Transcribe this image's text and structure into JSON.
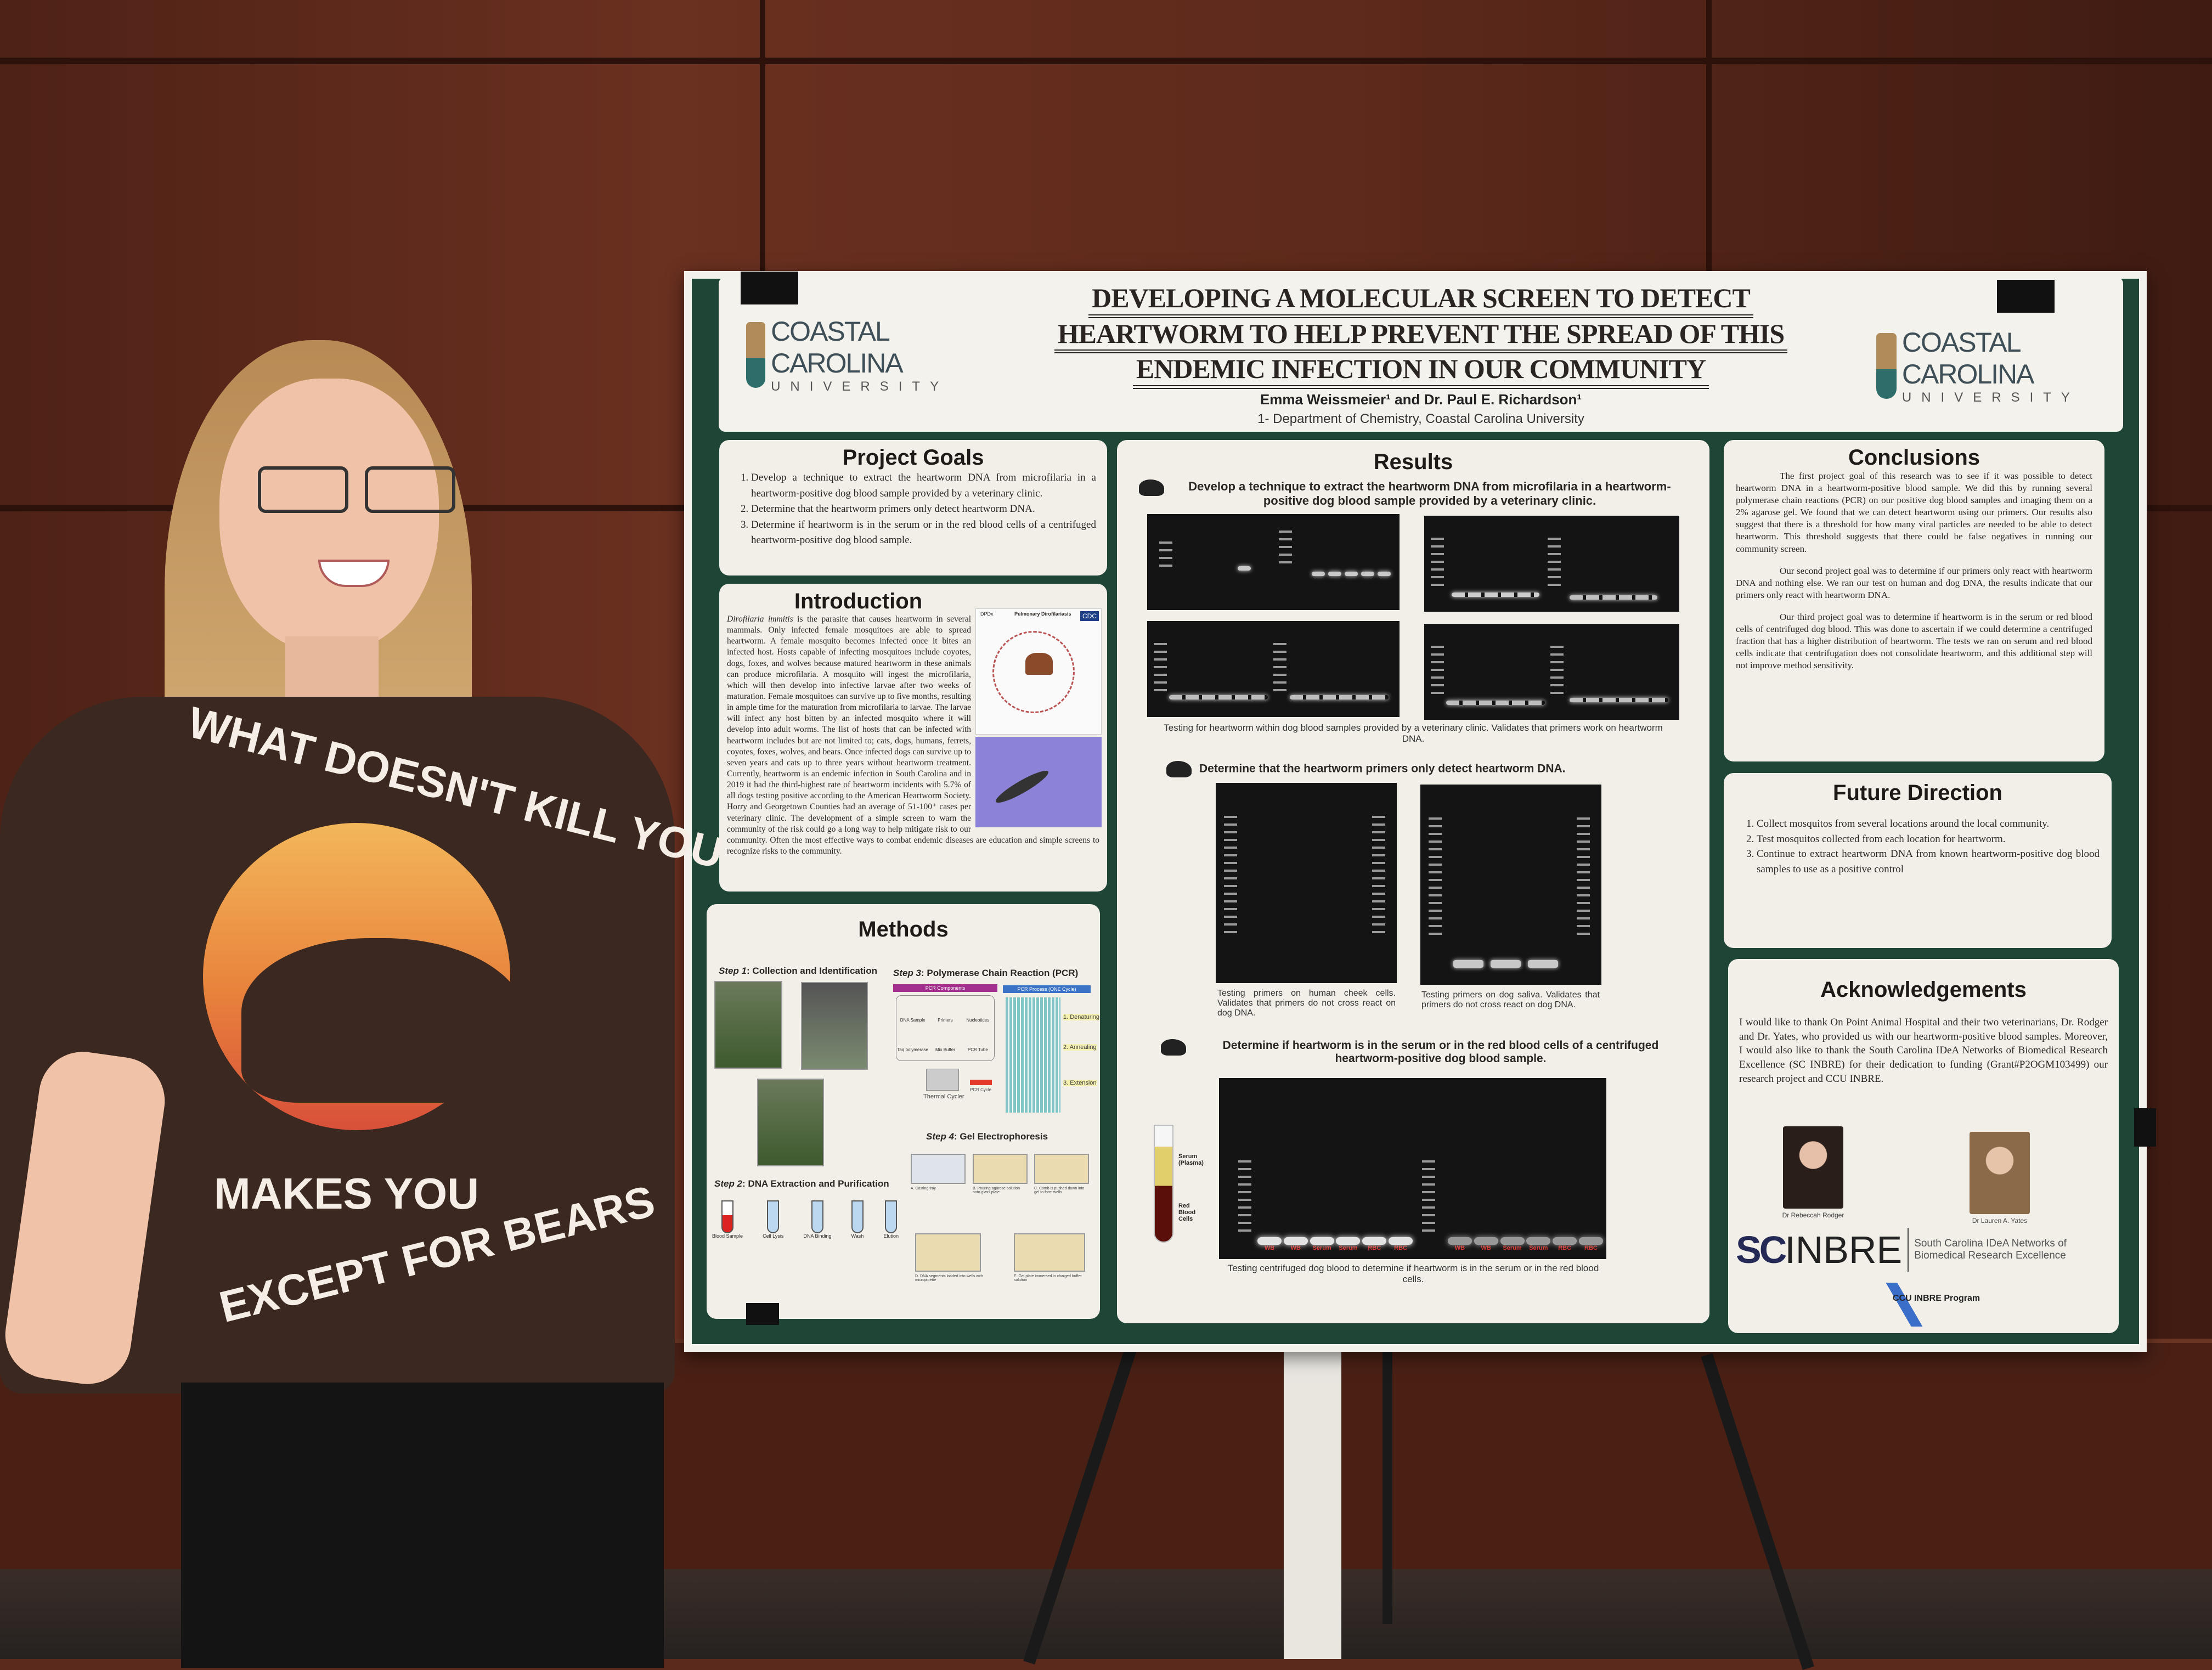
{
  "poster": {
    "title_lines": [
      "DEVELOPING A MOLECULAR SCREEN TO DETECT",
      "HEARTWORM TO HELP PREVENT THE SPREAD OF THIS",
      "ENDEMIC INFECTION IN OUR COMMUNITY"
    ],
    "authors": "Emma Weissmeier¹ and Dr. Paul E. Richardson¹",
    "affiliation": "1- Department of Chemistry, Coastal Carolina University",
    "logo": {
      "name": "COASTAL CAROLINA",
      "sub": "UNIVERSITY"
    },
    "accent_color": "#1f4536",
    "project_goals": {
      "heading": "Project Goals",
      "items": [
        "Develop a technique to extract the heartworm DNA from microfilaria in a heartworm-positive dog blood sample provided by a veterinary clinic.",
        "Determine that the heartworm primers only detect heartworm DNA.",
        "Determine if heartworm is in the serum or in the red blood cells of a centrifuged heartworm-positive dog blood sample."
      ]
    },
    "introduction": {
      "heading": "Introduction",
      "species": "Dirofilaria immitis",
      "text": " is the parasite that causes heartworm in several mammals. Only infected female mosquitoes are able to spread heartworm. A female mosquito becomes infected once it bites an infected host. Hosts capable of infecting mosquitoes include coyotes, dogs, foxes, and wolves because matured heartworm in these animals can produce microfilaria. A mosquito will ingest the microfilaria, which will then develop into infective larvae after two weeks of maturation. Female mosquitoes can survive up to five months, resulting in ample time for the maturation from microfilaria to larvae. The larvae will infect any host bitten by an infected mosquito where it will develop into adult worms. The list of hosts that can be infected with heartworm includes but are not limited to; cats, dogs, humans, ferrets, coyotes, foxes, wolves, and bears. Once infected dogs can survive up to seven years and cats up to three years without heartworm treatment. Currently, heartworm is an endemic infection in South Carolina and in 2019 it had the third-highest rate of heartworm incidents with 5.7% of all dogs testing positive according to the American Heartworm Society. Horry and Georgetown Counties had an average of 51-100⁺ cases per veterinary clinic. The development of a simple screen to warn the community of the risk could go a long way to help mitigate risk to our community. Often the most effective ways to combat endemic diseases are education and simple screens to recognize risks to the community.",
      "figure_labels": {
        "dpdx": "DPDx",
        "diagram": "Pulmonary Dirofilariasis",
        "cdc": "CDC"
      }
    },
    "methods": {
      "heading": "Methods",
      "step1": {
        "prefix": "Step 1",
        "label": ": Collection and Identification"
      },
      "step2": {
        "prefix": "Step 2",
        "label": ": DNA Extraction and Purification",
        "tubes": [
          "Blood Sample",
          "Cell Lysis",
          "DNA Binding",
          "Wash",
          "Elution"
        ]
      },
      "step3": {
        "prefix": "Step 3",
        "label": ": Polymerase Chain Reaction (PCR)",
        "components_header": "PCR Components",
        "process_header": "PCR Process (ONE Cycle)",
        "components": [
          "DNA Sample",
          "Primers",
          "Nucleotides",
          "Taq polymerase",
          "Mix Buffer",
          "PCR Tube"
        ],
        "thermal": "Thermal Cycler",
        "cycle": "PCR Cycle",
        "stages": [
          "1. Denaturing",
          "2. Annealing",
          "3. Extension"
        ]
      },
      "step4": {
        "prefix": "Step 4",
        "label": ": Gel Electrophoresis",
        "panels": [
          "A. Casting tray",
          "B. Pouring agarose solution onto glass plate",
          "C. Comb is pushed down into gel to form wells",
          "D. DNA segments loaded into wells with micropipette",
          "E. Gel plate immersed in charged buffer solution"
        ]
      }
    },
    "results": {
      "heading": "Results",
      "r1": {
        "heading": "Develop a technique to extract the heartworm DNA from microfilaria in a heartworm-positive dog blood sample provided by a veterinary clinic.",
        "caption": "Testing for heartworm within dog blood samples provided by a veterinary clinic. Validates that primers work on heartworm DNA."
      },
      "r2": {
        "heading": "Determine that the heartworm primers only detect heartworm DNA.",
        "caption_left": "Testing primers on human cheek cells. Validates that primers do not cross react on dog DNA.",
        "caption_right": "Testing primers on dog saliva. Validates that primers do not cross react on dog DNA."
      },
      "r3": {
        "heading": "Determine if heartworm is in the serum or in the red blood cells of a centrifuged heartworm-positive dog blood sample.",
        "tube_serum": "Serum (Plasma)",
        "tube_rbc": "Red Blood Cells",
        "lanes": [
          "WB",
          "WB",
          "Serum",
          "Serum",
          "RBC",
          "RBC",
          "WB",
          "WB",
          "Serum",
          "Serum",
          "RBC",
          "RBC"
        ],
        "lane_color": "#e0302a",
        "caption": "Testing centrifuged dog blood to determine if heartworm is in the serum or in the red blood cells."
      }
    },
    "conclusions": {
      "heading": "Conclusions",
      "paragraphs": [
        "The first project goal of this research was to see if it was possible to detect heartworm DNA in a heartworm-positive blood sample. We did this by running several polymerase chain reactions (PCR) on our positive dog blood samples and imaging them on a 2% agarose gel. We found that we can detect heartworm using our primers. Our results also suggest that there is a threshold for how many viral particles are needed to be able to detect heartworm. This threshold suggests that there could be false negatives in running our community screen.",
        "Our second project goal was to determine if our primers only react with heartworm DNA and nothing else. We ran our test on human and dog DNA, the results indicate that our primers only react with heartworm DNA.",
        "Our third project goal was to determine if heartworm is in the serum or red blood cells of centrifuged dog blood. This was done to ascertain if we could determine a centrifuged fraction that has a higher distribution of heartworm. The tests we ran on serum and red blood cells indicate that centrifugation does not consolidate heartworm, and this additional step will not improve method sensitivity."
      ]
    },
    "future_direction": {
      "heading": "Future Direction",
      "items": [
        "Collect mosquitos from several locations around the local community.",
        "Test mosquitos collected from each location for heartworm.",
        "Continue to extract heartworm DNA from known heartworm-positive dog blood samples to use as a positive control"
      ]
    },
    "acknowledgements": {
      "heading": "Acknowledgements",
      "text": "I would like to thank On Point Animal Hospital and their two veterinarians, Dr. Rodger and Dr. Yates, who provided us with our heartworm-positive blood samples. Moreover, I would also like to thank the South Carolina IDeA Networks of Biomedical Research Excellence (SC INBRE) for their dedication to funding (Grant#P2OGM103499) our research project and CCU INBRE.",
      "people": [
        "Dr Rebeccah Rodger",
        "Dr Lauren A. Yates"
      ],
      "scinbre_sc": "SC",
      "scinbre_inbre": "INBRE",
      "scinbre_desc": "South Carolina IDeA Networks of Biomedical Research Excellence",
      "ccu_program": "CCU INBRE Program"
    }
  },
  "shirt": {
    "top": "WHAT DOESN'T KILL YOU",
    "middle": "MAKES YOU",
    "bottom": "EXCEPT FOR BEARS"
  }
}
